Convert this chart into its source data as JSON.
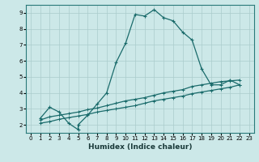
{
  "title": "",
  "xlabel": "Humidex (Indice chaleur)",
  "ylabel": "",
  "background_color": "#cce8e8",
  "grid_color": "#aacccc",
  "line_color": "#1a6b6b",
  "xlim": [
    -0.5,
    23.5
  ],
  "ylim": [
    1.5,
    9.5
  ],
  "xticks": [
    0,
    1,
    2,
    3,
    4,
    5,
    6,
    7,
    8,
    9,
    10,
    11,
    12,
    13,
    14,
    15,
    16,
    17,
    18,
    19,
    20,
    21,
    22,
    23
  ],
  "yticks": [
    2,
    3,
    4,
    5,
    6,
    7,
    8,
    9
  ],
  "line1_x": [
    1,
    2,
    3,
    4,
    5,
    5,
    6,
    7,
    8,
    9,
    10,
    11,
    12,
    13,
    14,
    15,
    16,
    17,
    18,
    19,
    20,
    21,
    22
  ],
  "line1_y": [
    2.4,
    3.1,
    2.8,
    2.1,
    1.7,
    2.0,
    2.6,
    3.3,
    4.0,
    5.9,
    7.1,
    8.9,
    8.8,
    9.2,
    8.7,
    8.5,
    7.8,
    7.3,
    5.5,
    4.5,
    4.5,
    4.8,
    4.5
  ],
  "line2_x": [
    1,
    2,
    3,
    4,
    5,
    6,
    7,
    8,
    9,
    10,
    11,
    12,
    13,
    14,
    15,
    16,
    17,
    18,
    19,
    20,
    21,
    22
  ],
  "line2_y": [
    2.3,
    2.5,
    2.6,
    2.7,
    2.8,
    2.95,
    3.05,
    3.2,
    3.35,
    3.5,
    3.6,
    3.7,
    3.85,
    4.0,
    4.1,
    4.2,
    4.4,
    4.5,
    4.6,
    4.7,
    4.75,
    4.8
  ],
  "line3_x": [
    1,
    2,
    3,
    4,
    5,
    6,
    7,
    8,
    9,
    10,
    11,
    12,
    13,
    14,
    15,
    16,
    17,
    18,
    19,
    20,
    21,
    22
  ],
  "line3_y": [
    2.1,
    2.2,
    2.35,
    2.45,
    2.55,
    2.65,
    2.8,
    2.9,
    3.0,
    3.1,
    3.2,
    3.35,
    3.5,
    3.6,
    3.7,
    3.8,
    3.95,
    4.05,
    4.15,
    4.25,
    4.35,
    4.5
  ]
}
